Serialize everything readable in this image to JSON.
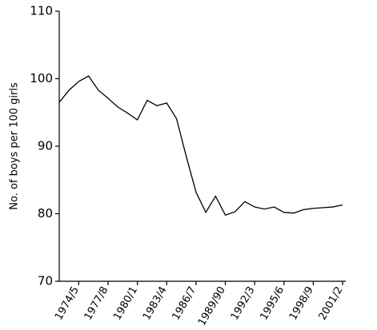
{
  "chart_data": {
    "type": "line",
    "y_label": "No. of boys per 100 girls",
    "categories": [
      null,
      null,
      "1974/5",
      null,
      null,
      "1977/8",
      null,
      null,
      "1980/1",
      null,
      null,
      "1983/4",
      null,
      null,
      "1986/7",
      null,
      null,
      "1989/90",
      null,
      null,
      "1992/3",
      null,
      null,
      "1995/6",
      null,
      null,
      "1998/9",
      null,
      null,
      "2001/2"
    ],
    "values": [
      96.5,
      98.3,
      99.6,
      100.4,
      98.3,
      97.1,
      95.8,
      94.9,
      93.9,
      96.8,
      96.0,
      96.4,
      94.1,
      88.5,
      83.2,
      80.2,
      82.6,
      79.8,
      80.3,
      81.8,
      81.0,
      80.7,
      81.0,
      80.2,
      80.1,
      80.6,
      80.8,
      80.9,
      81.0,
      81.3
    ],
    "color": "#000000",
    "ylim": [
      70,
      110
    ],
    "yticks": [
      70,
      80,
      90,
      100,
      110
    ]
  }
}
